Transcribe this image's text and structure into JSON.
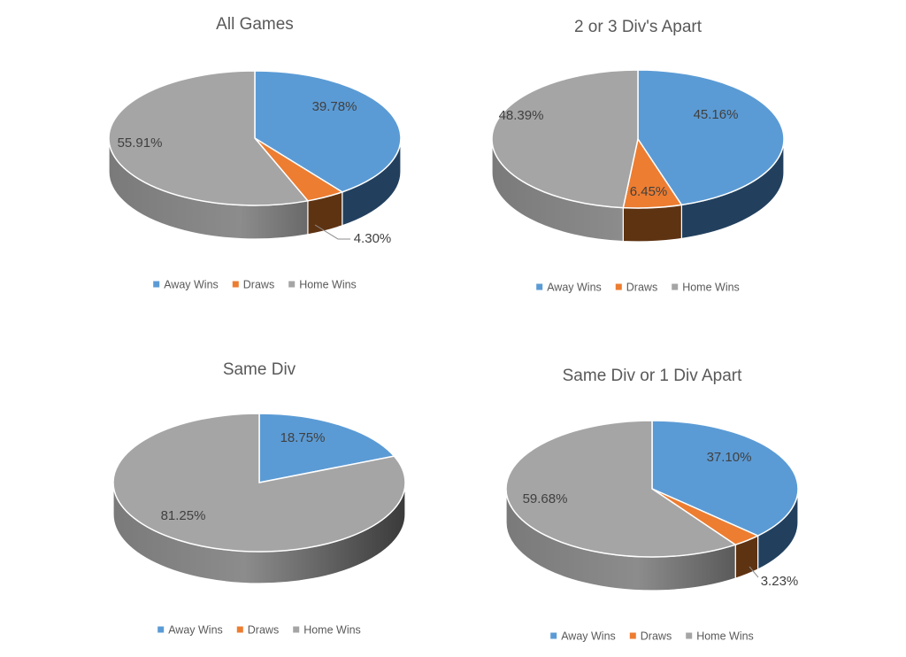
{
  "chart_data": [
    {
      "type": "pie",
      "title": "All Games",
      "categories": [
        "Away Wins",
        "Draws",
        "Home Wins"
      ],
      "values": [
        39.78,
        4.3,
        55.91
      ],
      "labels": [
        "39.78%",
        "4.30%",
        "55.91%"
      ],
      "legend": [
        "Away Wins",
        "Draws",
        "Home Wins"
      ],
      "legend_placement": "bottom",
      "style": "3d"
    },
    {
      "type": "pie",
      "title": "2 or 3 Div's Apart",
      "categories": [
        "Away Wins",
        "Draws",
        "Home Wins"
      ],
      "values": [
        45.16,
        6.45,
        48.39
      ],
      "labels": [
        "45.16%",
        "6.45%",
        "48.39%"
      ],
      "legend": [
        "Away Wins",
        "Draws",
        "Home Wins"
      ],
      "legend_placement": "bottom",
      "style": "3d"
    },
    {
      "type": "pie",
      "title": "Same Div",
      "categories": [
        "Away Wins",
        "Draws",
        "Home Wins"
      ],
      "values": [
        18.75,
        0,
        81.25
      ],
      "labels": [
        "18.75%",
        "",
        "81.25%"
      ],
      "legend": [
        "Away Wins",
        "Draws",
        "Home Wins"
      ],
      "legend_placement": "bottom",
      "style": "3d"
    },
    {
      "type": "pie",
      "title": "Same Div or 1 Div Apart",
      "categories": [
        "Away Wins",
        "Draws",
        "Home Wins"
      ],
      "values": [
        37.1,
        3.23,
        59.68
      ],
      "labels": [
        "37.10%",
        "3.23%",
        "59.68%"
      ],
      "legend": [
        "Away Wins",
        "Draws",
        "Home Wins"
      ],
      "legend_placement": "bottom",
      "style": "3d"
    }
  ],
  "colors": {
    "series": [
      "#5b9bd5",
      "#ed7d31",
      "#a5a5a5"
    ],
    "side": [
      "#22405e",
      "#5e3312",
      "#4a4a4a"
    ],
    "text": "#595959"
  }
}
